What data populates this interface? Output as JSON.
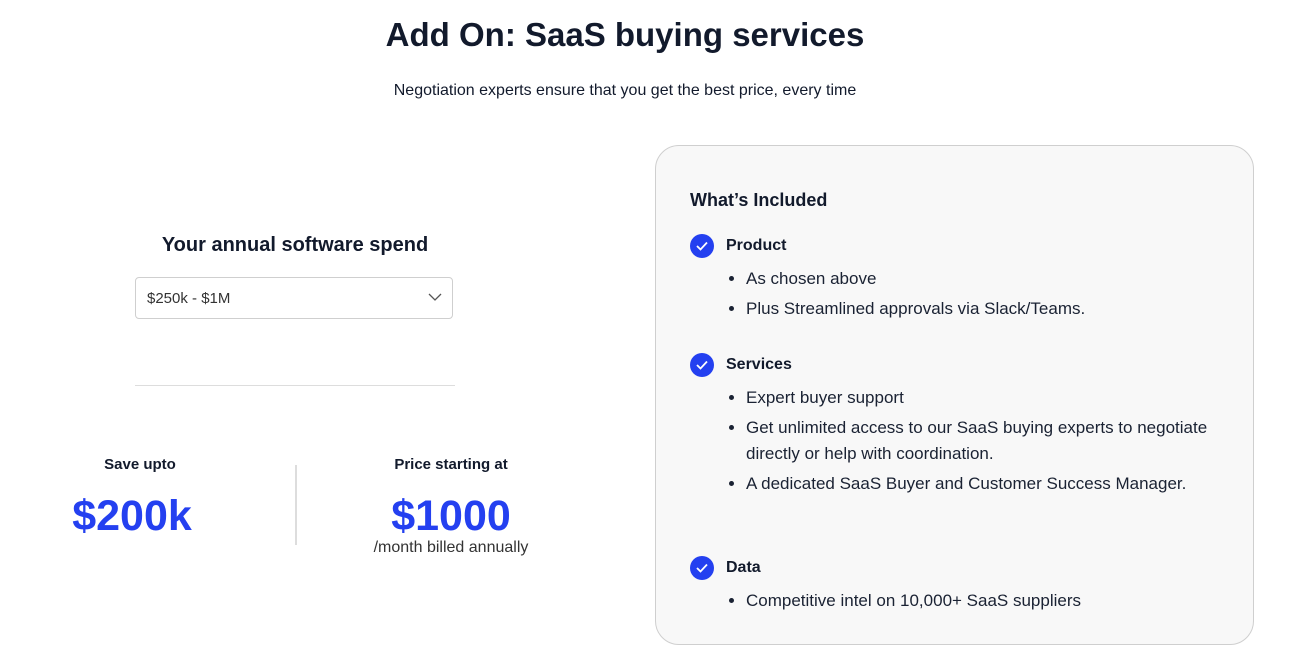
{
  "header": {
    "title": "Add On: SaaS buying services",
    "subtitle": "Negotiation experts ensure that you get the best price, every time"
  },
  "spend": {
    "label": "Your annual software spend",
    "selected": "$250k - $1M"
  },
  "stats": {
    "save_label": "Save upto",
    "save_value": "$200k",
    "price_label": "Price starting at",
    "price_value": "$1000",
    "price_sub": "/month billed annually"
  },
  "included": {
    "title": "What’s Included",
    "sections": [
      {
        "title": "Product",
        "items": [
          "As chosen above",
          "Plus Streamlined approvals via Slack/Teams."
        ]
      },
      {
        "title": "Services",
        "items": [
          "Expert buyer support",
          "Get unlimited access to our SaaS buying experts to negotiate directly or help with coordination.",
          "A dedicated SaaS Buyer and  Customer Success Manager."
        ]
      },
      {
        "title": "Data",
        "items": [
          "Competitive intel on 10,000+ SaaS suppliers"
        ]
      }
    ]
  },
  "colors": {
    "accent": "#2440f0",
    "text": "#121a2c",
    "card_bg": "#f8f8f8"
  }
}
